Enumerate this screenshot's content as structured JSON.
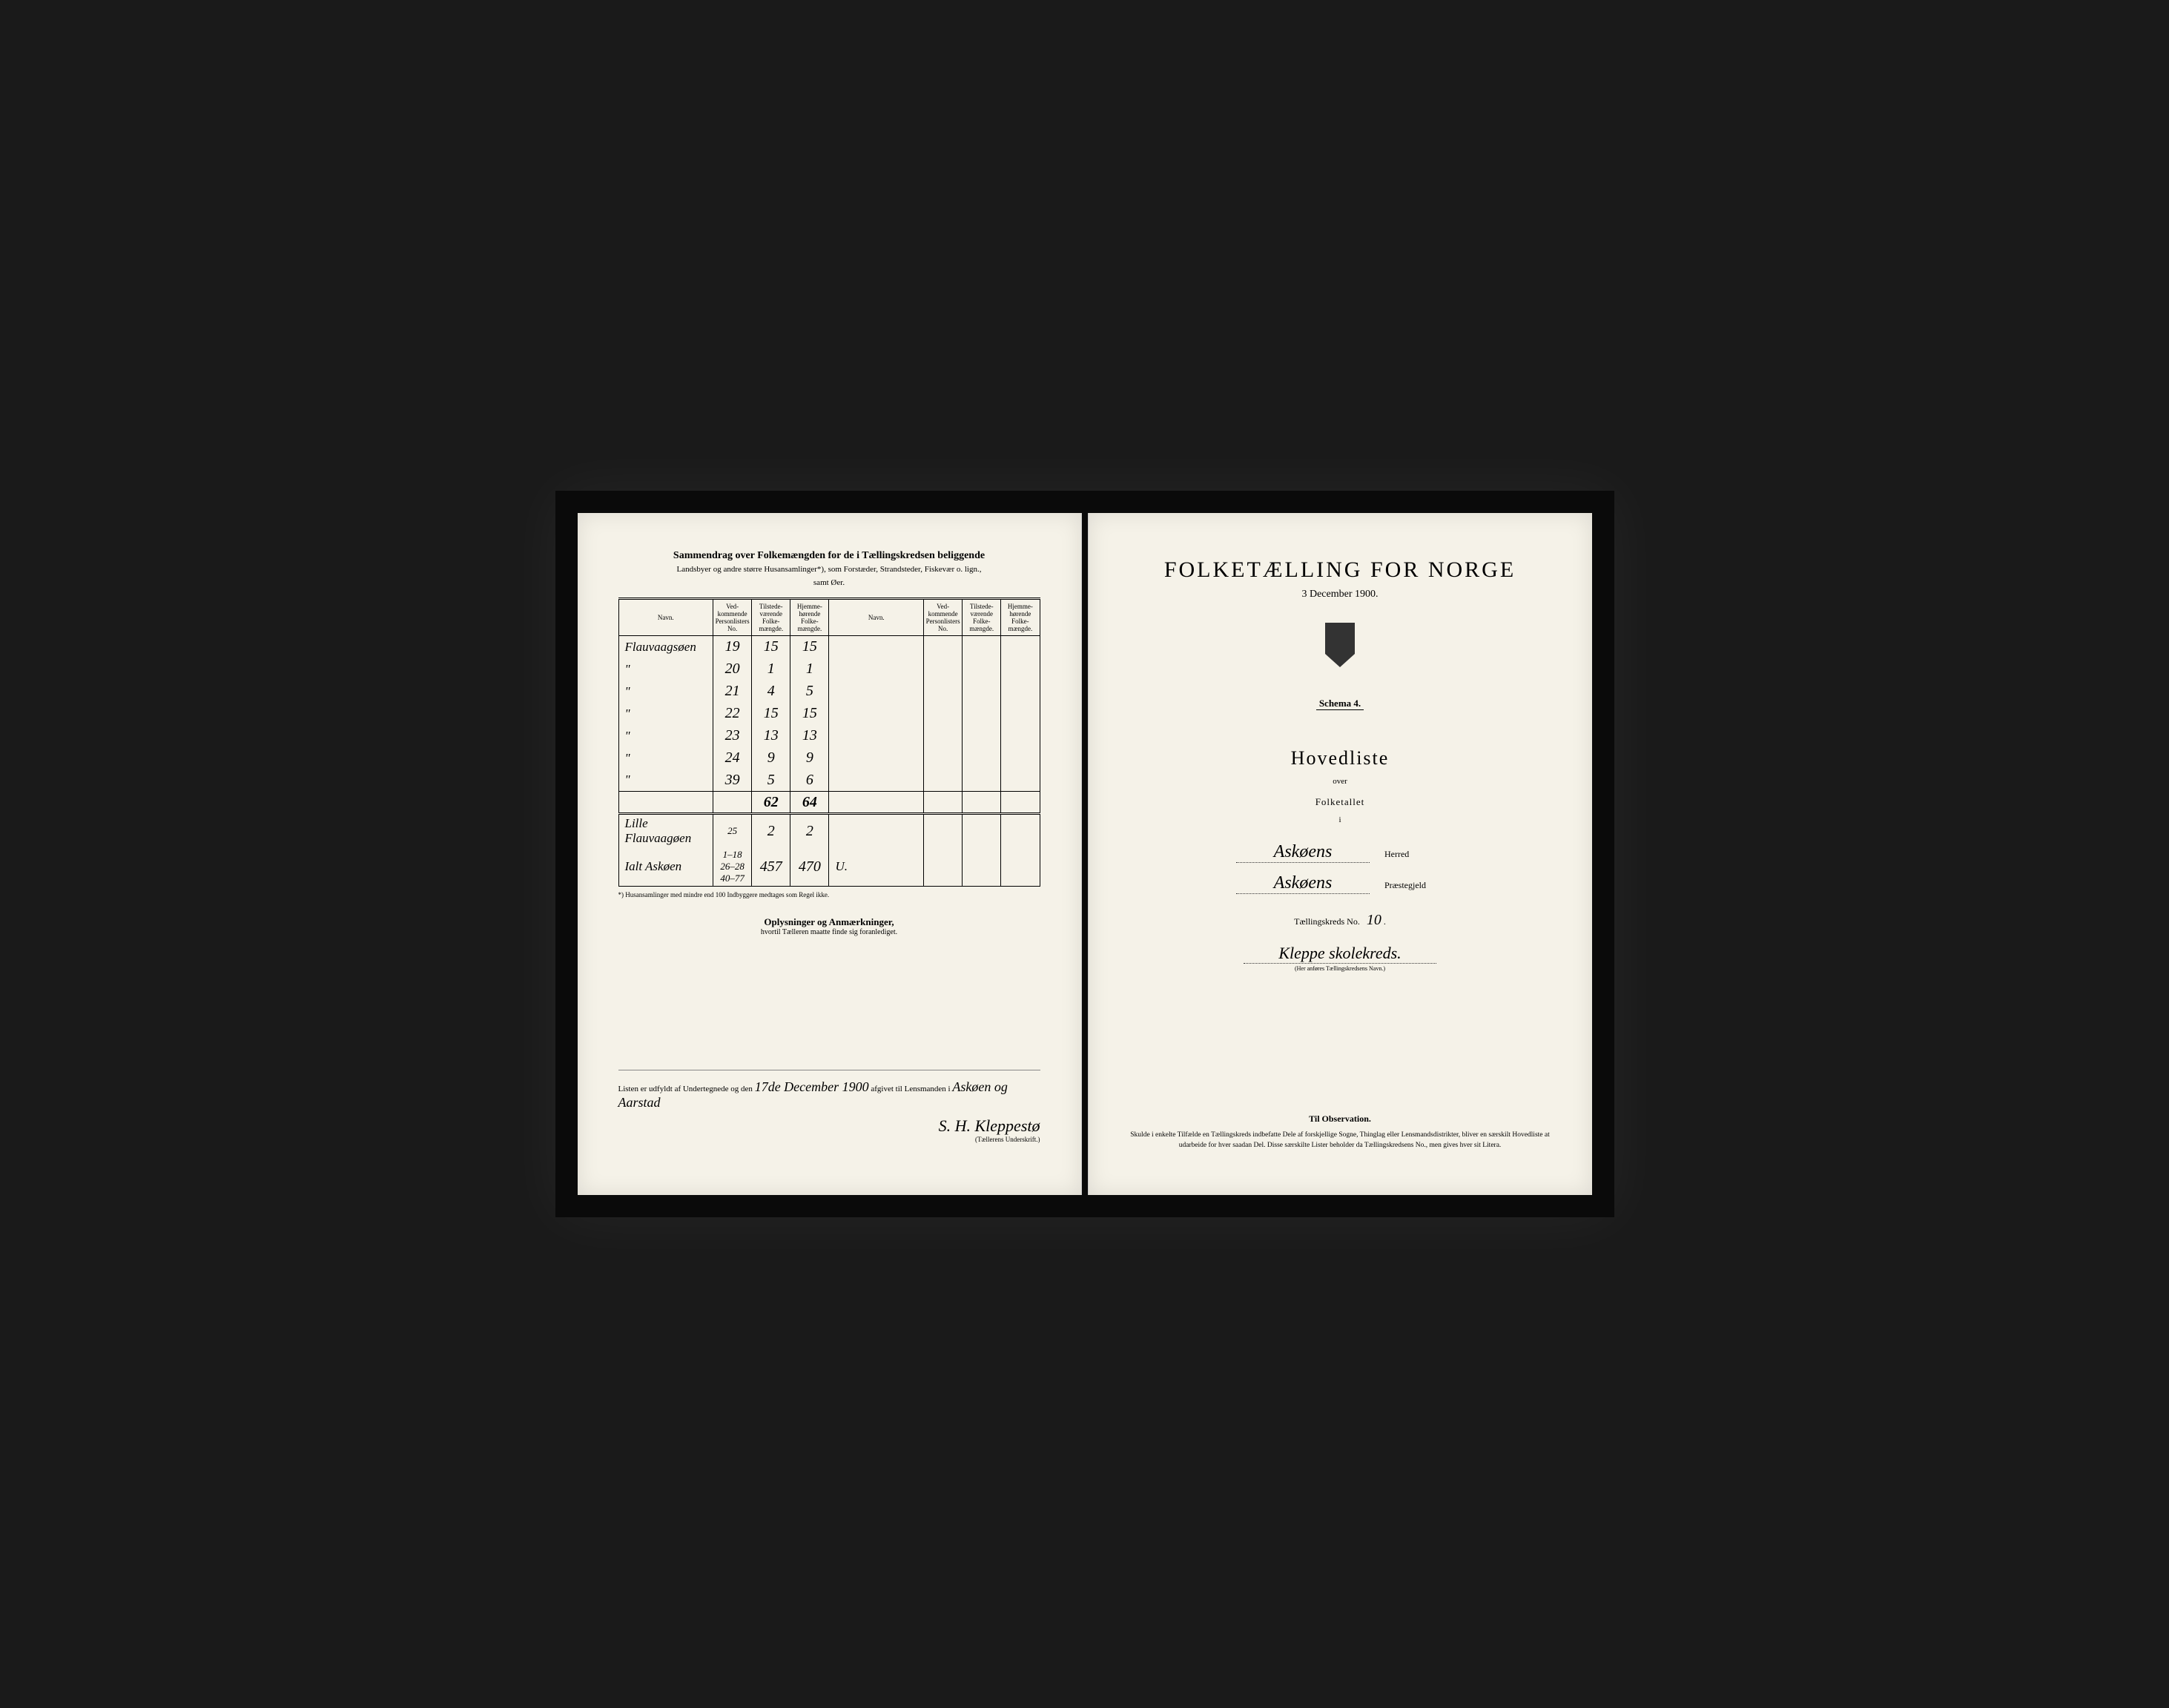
{
  "left": {
    "summary_title": "Sammendrag over Folkemængden for de i Tællingskredsen beliggende",
    "summary_sub1": "Landsbyer og andre større Husansamlinger*), som Forstæder, Strandsteder, Fiskevær o. lign.,",
    "summary_sub2": "samt Øer.",
    "headers": {
      "navn": "Navn.",
      "no": "Ved-kommende Personlisters No.",
      "tilstede": "Tilstede-værende Folke-mængde.",
      "hjemme": "Hjemme-hørende Folke-mængde."
    },
    "rows": [
      {
        "name": "Flauvaagsøen",
        "no": "19",
        "til": "15",
        "hj": "15"
      },
      {
        "name": "\"",
        "no": "20",
        "til": "1",
        "hj": "1"
      },
      {
        "name": "\"",
        "no": "21",
        "til": "4",
        "hj": "5"
      },
      {
        "name": "\"",
        "no": "22",
        "til": "15",
        "hj": "15"
      },
      {
        "name": "\"",
        "no": "23",
        "til": "13",
        "hj": "13"
      },
      {
        "name": "\"",
        "no": "24",
        "til": "9",
        "hj": "9"
      },
      {
        "name": "\"",
        "no": "39",
        "til": "5",
        "hj": "6"
      }
    ],
    "total": {
      "til": "62",
      "hj": "64"
    },
    "extra_rows": [
      {
        "name": "Lille Flauvaagøen",
        "no": "25",
        "til": "2",
        "hj": "2"
      },
      {
        "name": "Ialt Askøen",
        "no": "1–18\n26–28\n40–77",
        "til": "457",
        "hj": "470",
        "mark": "U."
      }
    ],
    "footnote": "*) Husansamlinger med mindre end 100 Indbyggere medtages som Regel ikke.",
    "remarks_title": "Oplysninger og Anmærkninger,",
    "remarks_sub": "hvortil Tælleren maatte finde sig foranlediget.",
    "footer_text1": "Listen er udfyldt af Undertegnede og den",
    "footer_date": "17de December 1900",
    "footer_text2": "afgivet til Lensmanden i",
    "footer_place": "Askøen og Aarstad",
    "signature": "S. H. Kleppestø",
    "sig_label": "(Tællerens Underskrift.)"
  },
  "right": {
    "main_title": "FOLKETÆLLING FOR NORGE",
    "date": "3 December 1900.",
    "schema": "Schema 4.",
    "hovedliste": "Hovedliste",
    "over": "over",
    "folketallet": "Folketallet",
    "i": "i",
    "herred_value": "Askøens",
    "herred_label": "Herred",
    "prestegjeld_value": "Askøens",
    "prestegjeld_label": "Præstegjeld",
    "kreds_label": "Tællingskreds No.",
    "kreds_no": "10",
    "kreds_name": "Kleppe skolekreds.",
    "kreds_hint": "(Her anføres Tællingskredsens Navn.)",
    "obs_title": "Til Observation.",
    "obs_text": "Skulde i enkelte Tilfælde en Tællingskreds indbefatte Dele af forskjellige Sogne, Thinglag eller Lensmandsdistrikter, bliver en særskilt Hovedliste at udarbeide for hver saadan Del. Disse særskilte Lister beholder da Tællingskredsens No., men gives hver sit Litera."
  }
}
